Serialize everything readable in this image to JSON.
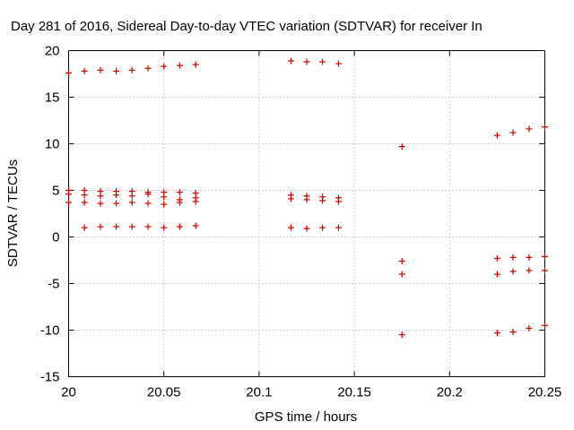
{
  "chart_data": {
    "type": "scatter",
    "title": "Day 281 of 2016, Sidereal Day-to-day VTEC variation (SDTVAR) for receiver In",
    "xlabel": "GPS time / hours",
    "ylabel": "SDTVAR / TECUs",
    "xlim": [
      20,
      20.25
    ],
    "ylim": [
      -15,
      20
    ],
    "xticks": [
      20,
      20.05,
      20.1,
      20.15,
      20.2,
      20.25
    ],
    "xtick_labels": [
      "20",
      "20.05",
      "20.1",
      "20.15",
      "20.2",
      "20.25"
    ],
    "yticks": [
      -15,
      -10,
      -5,
      0,
      5,
      10,
      15,
      20
    ],
    "ytick_labels": [
      "-15",
      "-10",
      "-5",
      "0",
      "5",
      "10",
      "15",
      "20"
    ],
    "grid": true,
    "marker": "+",
    "color": "#cc0000",
    "series": [
      {
        "name": "SDTVAR",
        "points": [
          [
            20.0,
            17.6
          ],
          [
            20.0083,
            17.8
          ],
          [
            20.0167,
            17.9
          ],
          [
            20.025,
            17.8
          ],
          [
            20.0333,
            17.9
          ],
          [
            20.0417,
            18.1
          ],
          [
            20.05,
            18.3
          ],
          [
            20.0583,
            18.4
          ],
          [
            20.0667,
            18.5
          ],
          [
            20.0,
            5.0
          ],
          [
            20.0083,
            5.0
          ],
          [
            20.0167,
            4.9
          ],
          [
            20.025,
            4.9
          ],
          [
            20.0333,
            4.9
          ],
          [
            20.0417,
            4.8
          ],
          [
            20.05,
            4.8
          ],
          [
            20.0583,
            4.8
          ],
          [
            20.0667,
            4.7
          ],
          [
            20.0,
            4.6
          ],
          [
            20.0083,
            4.5
          ],
          [
            20.0167,
            4.4
          ],
          [
            20.025,
            4.5
          ],
          [
            20.0333,
            4.4
          ],
          [
            20.0417,
            4.6
          ],
          [
            20.05,
            4.3
          ],
          [
            20.0583,
            4.0
          ],
          [
            20.0667,
            4.2
          ],
          [
            20.0,
            3.7
          ],
          [
            20.0083,
            3.7
          ],
          [
            20.0167,
            3.6
          ],
          [
            20.025,
            3.6
          ],
          [
            20.0333,
            3.7
          ],
          [
            20.0417,
            3.6
          ],
          [
            20.05,
            3.5
          ],
          [
            20.0583,
            3.7
          ],
          [
            20.0667,
            3.8
          ],
          [
            20.0083,
            1.0
          ],
          [
            20.0167,
            1.1
          ],
          [
            20.025,
            1.1
          ],
          [
            20.0333,
            1.1
          ],
          [
            20.0417,
            1.1
          ],
          [
            20.05,
            1.0
          ],
          [
            20.0583,
            1.1
          ],
          [
            20.0667,
            1.2
          ],
          [
            20.1167,
            18.9
          ],
          [
            20.125,
            18.8
          ],
          [
            20.1333,
            18.8
          ],
          [
            20.1417,
            18.6
          ],
          [
            20.1167,
            4.5
          ],
          [
            20.125,
            4.4
          ],
          [
            20.1333,
            4.3
          ],
          [
            20.1417,
            4.2
          ],
          [
            20.1167,
            4.1
          ],
          [
            20.125,
            4.0
          ],
          [
            20.1333,
            3.9
          ],
          [
            20.1417,
            3.8
          ],
          [
            20.1167,
            1.0
          ],
          [
            20.125,
            0.9
          ],
          [
            20.1333,
            1.0
          ],
          [
            20.1417,
            1.0
          ],
          [
            20.175,
            9.7
          ],
          [
            20.175,
            -2.6
          ],
          [
            20.175,
            -4.0
          ],
          [
            20.175,
            -10.5
          ],
          [
            20.225,
            10.9
          ],
          [
            20.2333,
            11.2
          ],
          [
            20.2417,
            11.6
          ],
          [
            20.25,
            11.8
          ],
          [
            20.225,
            -2.3
          ],
          [
            20.2333,
            -2.2
          ],
          [
            20.2417,
            -2.2
          ],
          [
            20.25,
            -2.1
          ],
          [
            20.225,
            -4.0
          ],
          [
            20.2333,
            -3.7
          ],
          [
            20.2417,
            -3.6
          ],
          [
            20.25,
            -3.6
          ],
          [
            20.225,
            -10.3
          ],
          [
            20.2333,
            -10.2
          ],
          [
            20.2417,
            -9.8
          ],
          [
            20.25,
            -9.5
          ]
        ]
      }
    ]
  }
}
